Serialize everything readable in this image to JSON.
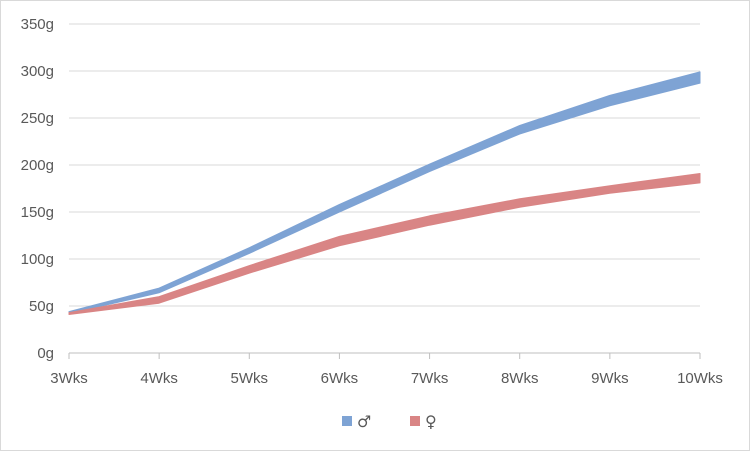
{
  "chart_data": {
    "type": "area",
    "categories": [
      "3Wks",
      "4Wks",
      "5Wks",
      "6Wks",
      "7Wks",
      "8Wks",
      "9Wks",
      "10Wks"
    ],
    "y_tick_labels": [
      "0g",
      "50g",
      "100g",
      "150g",
      "200g",
      "250g",
      "300g",
      "350g"
    ],
    "ylim": [
      0,
      350
    ],
    "grid": true,
    "legend_position": "bottom",
    "series": [
      {
        "name": "♂",
        "color": "#7ea3d4",
        "low": [
          42,
          64,
          106,
          150,
          193,
          233,
          263,
          287
        ],
        "high": [
          44,
          69,
          112,
          158,
          201,
          242,
          274,
          299
        ]
      },
      {
        "name": "♀",
        "color": "#d98585",
        "low": [
          41,
          53,
          85,
          114,
          136,
          155,
          170,
          181
        ],
        "high": [
          43,
          60,
          93,
          124,
          146,
          164,
          178,
          191
        ]
      }
    ]
  }
}
